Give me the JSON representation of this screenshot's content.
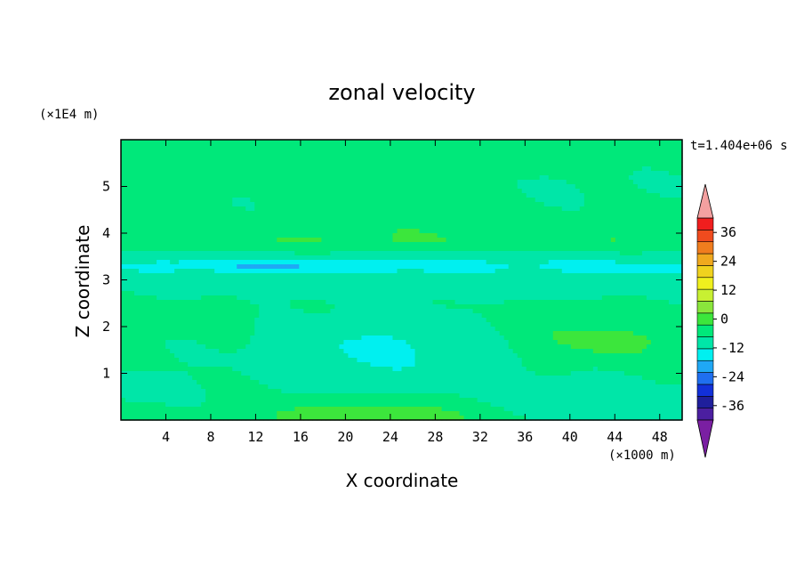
{
  "colors": {
    "background": "#ffffff",
    "levels": [
      "#7a1fa2",
      "#4b1fa0",
      "#1f1f9c",
      "#1230d9",
      "#1f6ff0",
      "#1fa8f5",
      "#00f0f0",
      "#00e6a8",
      "#00e87a",
      "#3ce63c",
      "#8ae63c",
      "#c8f032",
      "#f0f01e",
      "#f0d21e",
      "#f0a91e",
      "#f07d1e",
      "#f04b1e",
      "#f01e1e",
      "#f4a0a0"
    ]
  },
  "chart_data": {
    "type": "heatmap",
    "title": "zonal velocity",
    "xlabel": "X coordinate",
    "ylabel": "Z coordinate",
    "x_unit": "(×1000 m)",
    "y_unit": "(×1E4 m)",
    "time_label": "t=1.404e+06 s",
    "xlim": [
      0,
      50
    ],
    "ylim": [
      0,
      6
    ],
    "x_ticks": [
      4,
      8,
      12,
      16,
      20,
      24,
      28,
      32,
      36,
      40,
      44,
      48
    ],
    "y_ticks": [
      1,
      2,
      3,
      4,
      5
    ],
    "colorbar": {
      "labels": [
        "36",
        "24",
        "12",
        "0",
        "-12",
        "-24",
        "-36"
      ],
      "label_values": [
        36,
        24,
        12,
        0,
        -12,
        -24,
        -36
      ],
      "range": [
        -42,
        42
      ],
      "step": 6,
      "extend": "both"
    },
    "grid": false,
    "field": {
      "description_units": "zonal velocity",
      "background_value": 1,
      "features": [
        {
          "x": 25,
          "z": 5.6,
          "sx": 28,
          "sz": 0.35,
          "value": 1.5
        },
        {
          "x": 8,
          "z": 5.8,
          "sx": 5,
          "sz": 0.2,
          "value": 2
        },
        {
          "x": 42,
          "z": 5.1,
          "sx": 10,
          "sz": 0.3,
          "value": -1.5
        },
        {
          "x": 25,
          "z": 4.1,
          "sx": 30,
          "sz": 0.15,
          "value": 3
        },
        {
          "x": 25,
          "z": 3.8,
          "sx": 30,
          "sz": 0.15,
          "value": 4.5
        },
        {
          "x": 25,
          "z": 3.3,
          "sx": 40,
          "sz": 0.2,
          "value": -8
        },
        {
          "x": 13,
          "z": 3.3,
          "sx": 5,
          "sz": 0.08,
          "value": -6
        },
        {
          "x": 24,
          "z": 2.8,
          "sx": 30,
          "sz": 0.2,
          "value": -2
        },
        {
          "x": 23,
          "z": 1.5,
          "sx": 7,
          "sz": 0.55,
          "value": -8
        },
        {
          "x": 42,
          "z": 1.8,
          "sx": 6,
          "sz": 0.35,
          "value": 5
        },
        {
          "x": 44,
          "z": 1.6,
          "sx": 3,
          "sz": 0.2,
          "value": 3
        },
        {
          "x": 22,
          "z": 0.1,
          "sx": 7,
          "sz": 0.22,
          "value": 10
        },
        {
          "x": 38,
          "z": 0.5,
          "sx": 6,
          "sz": 0.35,
          "value": -3
        },
        {
          "x": 46,
          "z": 0.3,
          "sx": 5,
          "sz": 0.3,
          "value": -4
        },
        {
          "x": 2,
          "z": 0.7,
          "sx": 3,
          "sz": 0.3,
          "value": -3
        },
        {
          "x": 6,
          "z": 2.2,
          "sx": 5,
          "sz": 0.25,
          "value": 2
        },
        {
          "x": 48,
          "z": 3.0,
          "sx": 4,
          "sz": 0.3,
          "value": -2
        }
      ]
    }
  }
}
